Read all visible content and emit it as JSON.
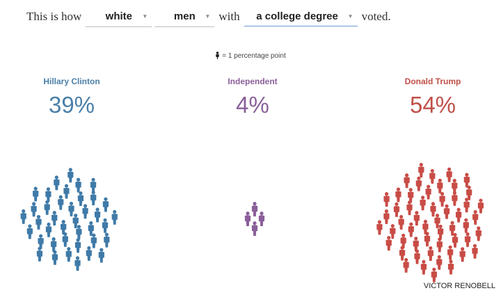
{
  "sentence": {
    "prefix": "This is how",
    "race": "white",
    "gender": "men",
    "with_word": "with",
    "education": "a college degree",
    "suffix": "voted."
  },
  "legend": {
    "text": "= 1 percentage point",
    "icon": "person-icon"
  },
  "candidates": [
    {
      "name": "Hillary Clinton",
      "percent": "39%",
      "value": 39,
      "color": "#3f7aa8"
    },
    {
      "name": "Independent",
      "percent": "4%",
      "value": 4,
      "color": "#8a5f9a"
    },
    {
      "name": "Donald Trump",
      "percent": "54%",
      "value": 54,
      "color": "#c94c46"
    }
  ],
  "credit": "VICTOR RENOBELL"
}
